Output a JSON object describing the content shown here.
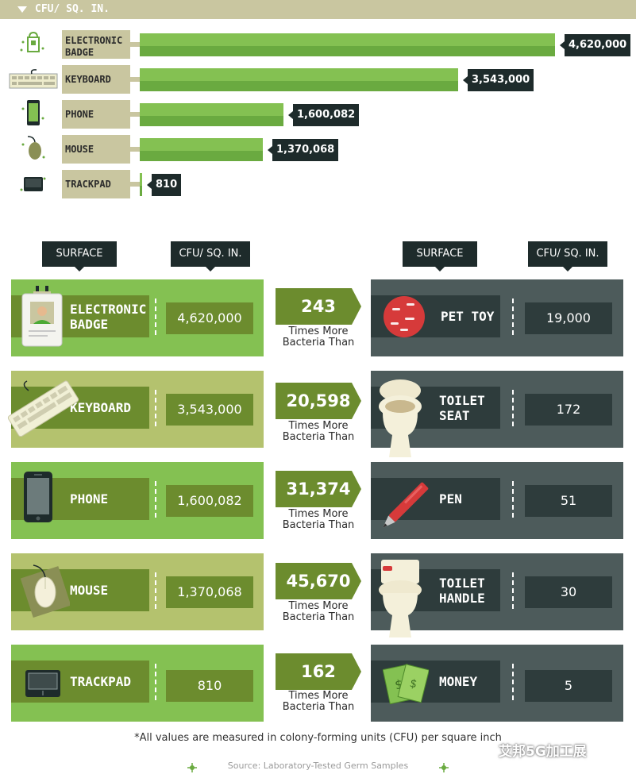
{
  "header": {
    "title": "CFU/ SQ. IN."
  },
  "top_chart": {
    "rows": [
      {
        "label": "ELECTRONIC BADGE",
        "icon": "badge-icon",
        "value": 4620000,
        "display": "4,620,000"
      },
      {
        "label": "KEYBOARD",
        "icon": "keyboard-icon",
        "value": 3543000,
        "display": "3,543,000"
      },
      {
        "label": "PHONE",
        "icon": "phone-icon",
        "value": 1600082,
        "display": "1,600,082"
      },
      {
        "label": "MOUSE",
        "icon": "mouse-icon",
        "value": 1370068,
        "display": "1,370,068"
      },
      {
        "label": "TRACKPAD",
        "icon": "trackpad-icon",
        "value": 810,
        "display": "810"
      }
    ]
  },
  "columns": {
    "left_surface": "SURFACE",
    "left_cfu": "CFU/ SQ. IN.",
    "right_surface": "SURFACE",
    "right_cfu": "CFU/ SQ. IN."
  },
  "comparisons": [
    {
      "left_label": "ELECTRONIC BADGE",
      "left_value": "4,620,000",
      "times": "243",
      "times_line1": "Times More",
      "times_line2": "Bacteria Than",
      "right_label": "PET TOY",
      "right_value": "19,000",
      "right_icon": "pet-toy-icon",
      "left_icon": "badge-icon"
    },
    {
      "left_label": "KEYBOARD",
      "left_value": "3,543,000",
      "times": "20,598",
      "times_line1": "Times More",
      "times_line2": "Bacteria Than",
      "right_label": "TOILET SEAT",
      "right_value": "172",
      "right_icon": "toilet-icon",
      "left_icon": "keyboard-icon"
    },
    {
      "left_label": "PHONE",
      "left_value": "1,600,082",
      "times": "31,374",
      "times_line1": "Times More",
      "times_line2": "Bacteria Than",
      "right_label": "PEN",
      "right_value": "51",
      "right_icon": "pen-icon",
      "left_icon": "phone-icon"
    },
    {
      "left_label": "MOUSE",
      "left_value": "1,370,068",
      "times": "45,670",
      "times_line1": "Times More",
      "times_line2": "Bacteria Than",
      "right_label": "TOILET HANDLE",
      "right_value": "30",
      "right_icon": "toilet-icon",
      "left_icon": "mouse-icon"
    },
    {
      "left_label": "TRACKPAD",
      "left_value": "810",
      "times": "162",
      "times_line1": "Times More",
      "times_line2": "Bacteria Than",
      "right_label": "MONEY",
      "right_value": "5",
      "right_icon": "money-icon",
      "left_icon": "trackpad-icon"
    }
  ],
  "footnote": "*All values are measured in colony-forming units (CFU) per square inch",
  "source": "Source: Laboratory-Tested Germ Samples",
  "watermark": "艾邦5G加工展",
  "colors": {
    "green": "#84c152",
    "olive": "#b4c26e",
    "dark": "#1e2b2b",
    "slate": "#4d5b5b",
    "khaki": "#c9c6a0"
  }
}
